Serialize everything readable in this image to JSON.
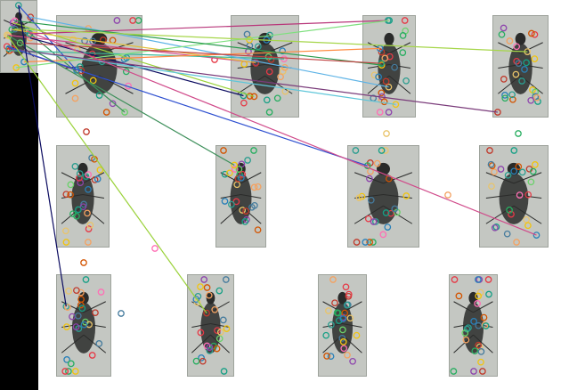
{
  "figure": {
    "kind": "feature-matching-visualization",
    "background": "#ffffff",
    "left_bar_color": "#000000",
    "tile_color": "#c4c7c2",
    "beetle_color": "#2a2b2a",
    "query_image": {
      "label": ""
    },
    "candidate_images": [
      {
        "row": 1,
        "col": 1
      },
      {
        "row": 1,
        "col": 2
      },
      {
        "row": 1,
        "col": 3
      },
      {
        "row": 1,
        "col": 4
      },
      {
        "row": 2,
        "col": 1
      },
      {
        "row": 2,
        "col": 2
      },
      {
        "row": 2,
        "col": 3
      },
      {
        "row": 2,
        "col": 4
      },
      {
        "row": 3,
        "col": 1
      },
      {
        "row": 3,
        "col": 2
      },
      {
        "row": 3,
        "col": 3
      },
      {
        "row": 3,
        "col": 4
      }
    ],
    "match_line_colors": [
      "#7a3b7a",
      "#3d8f5a",
      "#2d4fd0",
      "#d04a8a",
      "#0b0b60",
      "#9ad23a",
      "#e3c03a",
      "#39b89a",
      "#b8367a",
      "#5db3e6",
      "#ff8c42",
      "#7ee07e",
      "#2a9c4e",
      "#c04040",
      "#5ec6d9",
      "#a6d64a"
    ],
    "keypoint_colors": [
      "#e63946",
      "#457b9d",
      "#2a9d8f",
      "#e9c46a",
      "#f4a261",
      "#8e44ad",
      "#27ae60",
      "#d35400",
      "#16a085",
      "#c0392b",
      "#2980b9",
      "#f1c40f",
      "#ff6fb5",
      "#6ad16a"
    ]
  }
}
